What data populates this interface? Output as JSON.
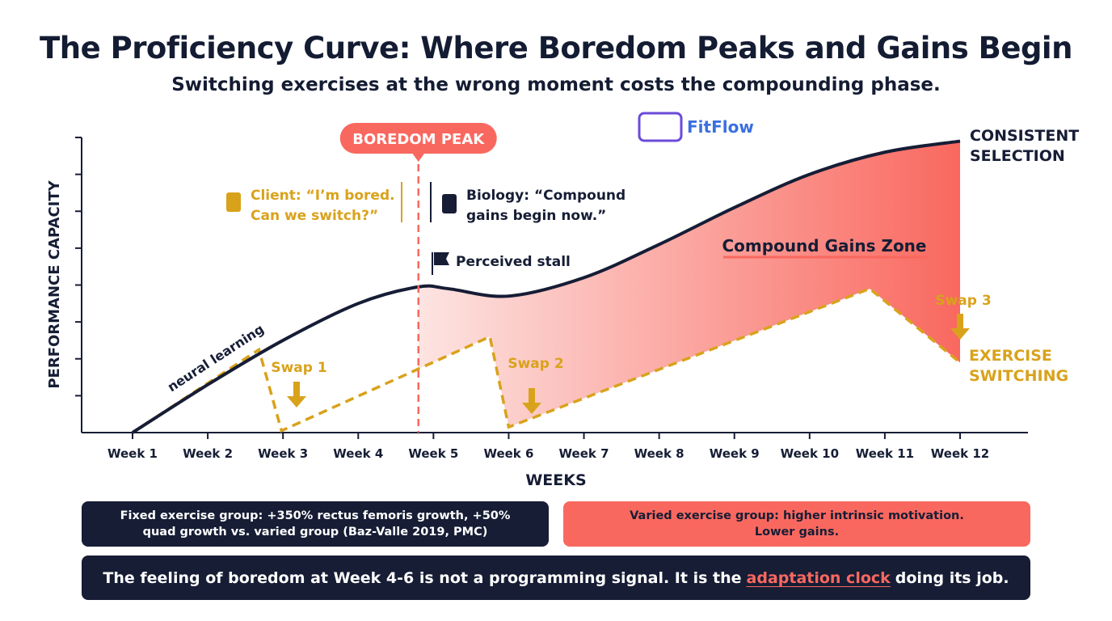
{
  "brand": {
    "name": "FitFlow",
    "colors": {
      "navy": "#161d35",
      "coral": "#f9685f",
      "gold": "#d9a21b",
      "blue": "#3b6fe0"
    }
  },
  "chart_data": {
    "type": "line",
    "title": "The Proficiency Curve: Where Boredom Peaks and Gains Begin",
    "subtitle": "Switching exercises at the wrong moment costs the compounding phase.",
    "xlabel": "WEEKS",
    "ylabel": "PERFORMANCE CAPACITY",
    "categories": [
      "Week 1",
      "Week 2",
      "Week 3",
      "Week 4",
      "Week 5",
      "Week 6",
      "Week 7",
      "Week 8",
      "Week 9",
      "Week 10",
      "Week 11",
      "Week 12"
    ],
    "xlim": [
      1,
      12
    ],
    "ylim": [
      0,
      8
    ],
    "yticks": [
      1,
      2,
      3,
      4,
      5,
      6,
      7,
      8
    ],
    "series": [
      {
        "name": "CONSISTENT SELECTION",
        "line": "solid",
        "color": "#161d35",
        "x": [
          1,
          2,
          3,
          4,
          4.8,
          5.2,
          6,
          7,
          8,
          9,
          10,
          11,
          12
        ],
        "y": [
          0,
          1.3,
          2.5,
          3.5,
          3.95,
          3.9,
          3.7,
          4.2,
          5.1,
          6.1,
          7.0,
          7.6,
          7.9
        ]
      },
      {
        "name": "EXERCISE SWITCHING",
        "line": "dashed",
        "color": "#d9a21b",
        "x": [
          1,
          2.68,
          2.98,
          5.75,
          6.0,
          10.8,
          12
        ],
        "y": [
          0,
          2.25,
          0.05,
          2.6,
          0.15,
          3.9,
          1.9
        ]
      }
    ],
    "markers": {
      "boredom_peak": {
        "x": 4.8,
        "label": "BOREDOM PEAK"
      }
    },
    "annotations": {
      "neural": "neural learning",
      "client": [
        "Client: “I’m bored.",
        "Can we switch?”"
      ],
      "biology": [
        "Biology: “Compound",
        "gains begin now.”"
      ],
      "stall": "Perceived stall",
      "zone": "Compound Gains Zone",
      "consistent": [
        "CONSISTENT",
        "SELECTION"
      ],
      "switching": [
        "EXERCISE",
        "SWITCHING"
      ],
      "swaps": [
        {
          "label": "Swap 1",
          "x": 3.2
        },
        {
          "label": "Swap 2",
          "x": 6.3
        },
        {
          "label": "Swap 3",
          "x": 12
        }
      ]
    }
  },
  "callouts": {
    "fixed": [
      "Fixed exercise group: +350% rectus femoris growth, +50%",
      "quad growth vs. varied group (Baz-Valle 2019, PMC)"
    ],
    "varied": [
      "Varied exercise group: higher intrinsic motivation.",
      "Lower gains."
    ],
    "bottom": {
      "pre": "The feeling of boredom at Week 4-6 is not a programming signal. It is the",
      "highlight": "adaptation clock",
      "post": "doing its job."
    }
  }
}
